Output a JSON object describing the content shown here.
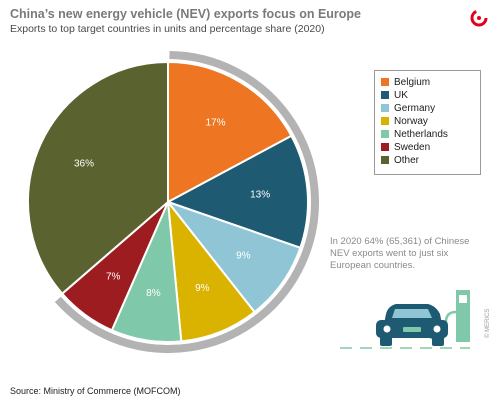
{
  "header": {
    "title": "China’s new energy vehicle (NEV) exports focus on Europe",
    "subtitle": "Exports to top target countries in units and percentage share (2020)"
  },
  "chart_data": {
    "type": "pie",
    "title": "China’s new energy vehicle (NEV) exports focus on Europe",
    "subtitle": "Exports to top target countries in units and percentage share (2020)",
    "slices": [
      {
        "name": "Belgium",
        "value": 17,
        "label": "17%",
        "color": "#ee7623"
      },
      {
        "name": "UK",
        "value": 13,
        "label": "13%",
        "color": "#1f5a73"
      },
      {
        "name": "Germany",
        "value": 9,
        "label": "9%",
        "color": "#8fc5d5"
      },
      {
        "name": "Norway",
        "value": 9,
        "label": "9%",
        "color": "#d9b300"
      },
      {
        "name": "Netherlands",
        "value": 8,
        "label": "8%",
        "color": "#7fc8a9"
      },
      {
        "name": "Sweden",
        "value": 7,
        "label": "7%",
        "color": "#9c1c20"
      },
      {
        "name": "Other",
        "value": 36,
        "label": "36%",
        "color": "#5a6330"
      }
    ],
    "legend_position": "right",
    "highlight": "European countries (first six slices) outlined by grey arc",
    "annotation": "In 2020 64% (65,361) of Chinese NEV exports went to just six European countries."
  },
  "source": "Source: Ministry of Commerce (MOFCOM)",
  "copyright": "© MERICS",
  "colors": {
    "arc": "#b3b3b3",
    "annotation_text": "#8a8a8a",
    "car_body": "#1f5a73",
    "charger": "#7fc8a9",
    "logo_red": "#e3001b"
  },
  "icons": {
    "logo": "merics-logo-icon",
    "car": "electric-car-icon",
    "charger": "charging-station-icon"
  }
}
